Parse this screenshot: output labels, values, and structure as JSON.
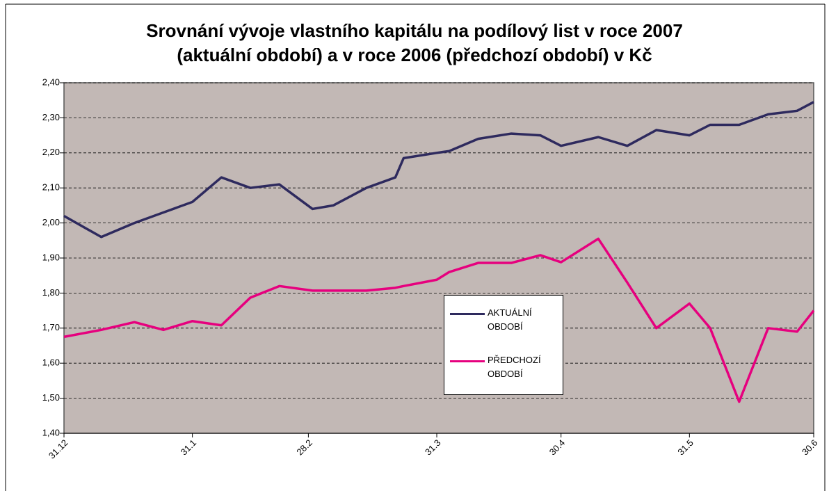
{
  "chart_data": {
    "type": "line",
    "title": "Srovnání vývoje vlastního kapitálu na podílový list v roce 2007",
    "subtitle": "(aktuální období) a v roce 2006 (předchozí období) v Kč",
    "x": [
      0,
      9,
      17,
      24,
      31,
      38,
      45,
      52,
      60,
      65,
      73,
      80,
      82,
      90,
      93,
      100,
      108,
      115,
      120,
      129,
      136,
      143,
      151,
      156,
      163,
      170,
      177,
      181
    ],
    "series": [
      {
        "name": "AKTUÁLNÍ OBDOBÍ",
        "color": "#2e2a5e",
        "values": [
          2.02,
          1.96,
          2.0,
          2.03,
          2.06,
          2.13,
          2.1,
          2.11,
          2.04,
          2.05,
          2.1,
          2.13,
          2.185,
          2.2,
          2.205,
          2.24,
          2.255,
          2.25,
          2.22,
          2.245,
          2.22,
          2.265,
          2.25,
          2.28,
          2.28,
          2.31,
          2.32,
          2.345
        ]
      },
      {
        "name": "PŘEDCHOZÍ OBDOBÍ",
        "color": "#e6007e",
        "values": [
          1.675,
          1.695,
          1.717,
          1.695,
          1.72,
          1.708,
          1.787,
          1.82,
          1.807,
          1.807,
          1.807,
          1.815,
          1.82,
          1.838,
          1.86,
          1.886,
          1.886,
          1.908,
          1.888,
          1.955,
          1.83,
          1.7,
          1.77,
          1.7,
          1.49,
          1.7,
          1.69,
          1.75
        ]
      }
    ],
    "xlim": [
      0,
      181
    ],
    "xticks": [
      {
        "value": 0,
        "label": "31.12"
      },
      {
        "value": 31,
        "label": "31.1"
      },
      {
        "value": 59,
        "label": "28.2"
      },
      {
        "value": 90,
        "label": "31.3"
      },
      {
        "value": 120,
        "label": "30.4"
      },
      {
        "value": 151,
        "label": "31.5"
      },
      {
        "value": 181,
        "label": "30.6"
      }
    ],
    "ylim": [
      1.4,
      2.4
    ],
    "yticks": [
      {
        "value": 1.4,
        "label": "1,40"
      },
      {
        "value": 1.5,
        "label": "1,50"
      },
      {
        "value": 1.6,
        "label": "1,60"
      },
      {
        "value": 1.7,
        "label": "1,70"
      },
      {
        "value": 1.8,
        "label": "1,80"
      },
      {
        "value": 1.9,
        "label": "1,90"
      },
      {
        "value": 2.0,
        "label": "2,00"
      },
      {
        "value": 2.1,
        "label": "2,10"
      },
      {
        "value": 2.2,
        "label": "2,20"
      },
      {
        "value": 2.3,
        "label": "2,30"
      },
      {
        "value": 2.4,
        "label": "2,40"
      }
    ],
    "grid": true,
    "plot_background": "#c2b8b5"
  }
}
